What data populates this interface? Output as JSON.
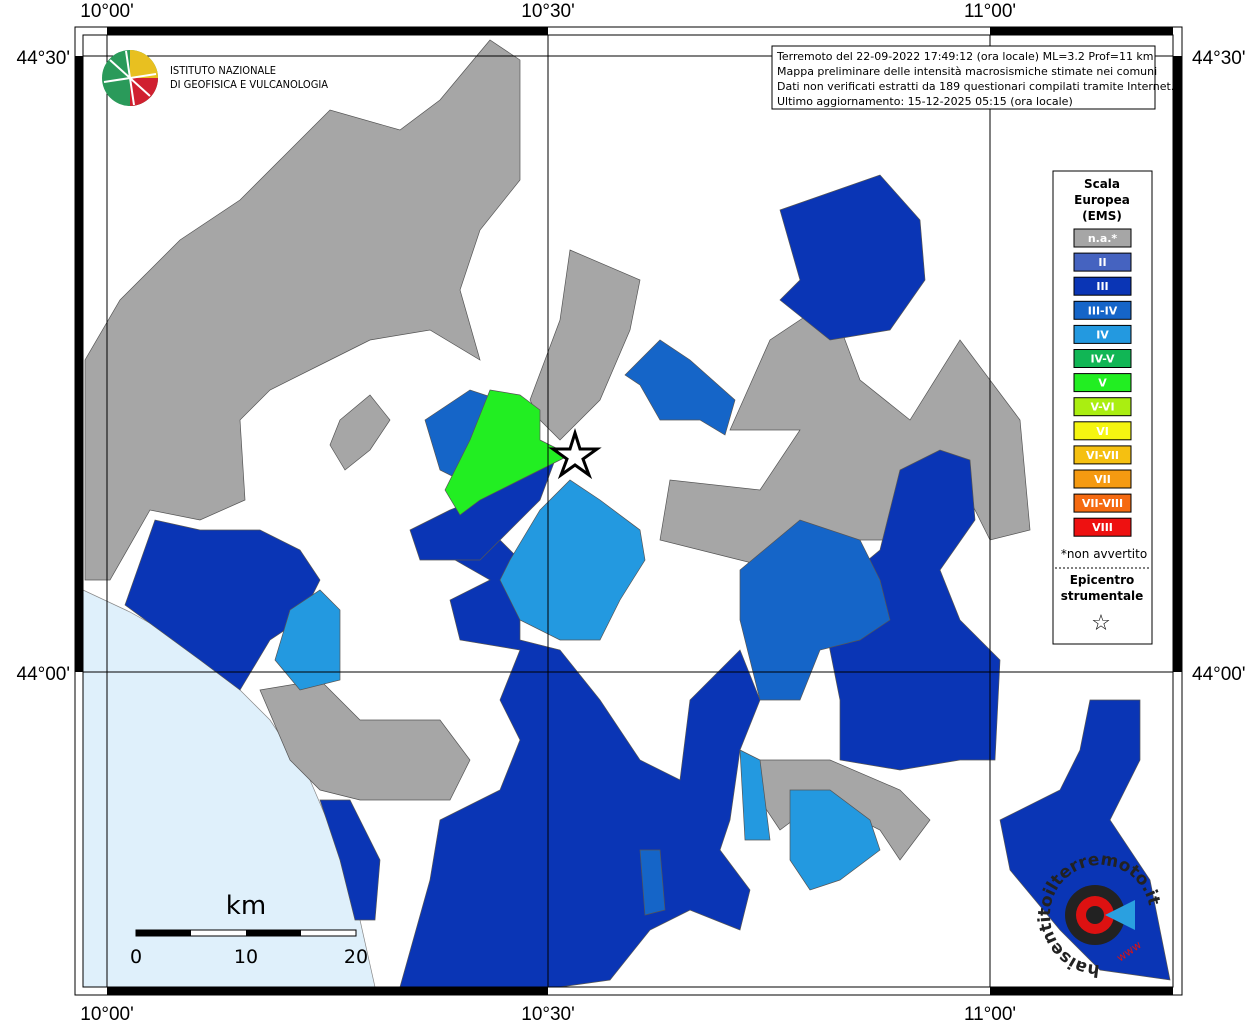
{
  "map": {
    "frame": {
      "longitudes": [
        "10°00'",
        "10°30'",
        "11°00'"
      ],
      "latitudes": [
        "44°30'",
        "44°00'"
      ]
    },
    "logo": {
      "line1": "ISTITUTO NAZIONALE",
      "line2": "DI GEOFISICA E VULCANOLOGIA"
    },
    "info": [
      "Terremoto del 22-09-2022 17:49:12 (ora locale) ML=3.2 Prof=11 km",
      "Mappa preliminare delle intensità macrosismiche stimate nei comuni",
      "Dati non verificati estratti da 189 questionari compilati tramite Internet.",
      "Ultimo aggiornamento: 15-12-2025 05:15 (ora locale)"
    ],
    "legend": {
      "title": [
        "Scala",
        "Europea",
        "(EMS)"
      ],
      "items": [
        {
          "label": "n.a.*",
          "color": "#a6a6a6"
        },
        {
          "label": "II",
          "color": "#4563c0"
        },
        {
          "label": "III",
          "color": "#0a35b5"
        },
        {
          "label": "III-IV",
          "color": "#1565c8"
        },
        {
          "label": "IV",
          "color": "#2399e0"
        },
        {
          "label": "IV-V",
          "color": "#11b655"
        },
        {
          "label": "V",
          "color": "#22ee22"
        },
        {
          "label": "V-VI",
          "color": "#aaee11"
        },
        {
          "label": "VI",
          "color": "#f5f511"
        },
        {
          "label": "VI-VII",
          "color": "#f5c011"
        },
        {
          "label": "VII",
          "color": "#f59a11"
        },
        {
          "label": "VII-VIII",
          "color": "#f56a11"
        },
        {
          "label": "VIII",
          "color": "#ee1111"
        }
      ],
      "note": "*non avvertito",
      "epicenter": [
        "Epicentro",
        "strumentale"
      ],
      "star": "☆"
    },
    "scale": {
      "unit": "km",
      "labels": [
        "0",
        "10",
        "20"
      ]
    },
    "watermark": {
      "site": "haisentitoilterremoto.it",
      "www": "www"
    }
  }
}
